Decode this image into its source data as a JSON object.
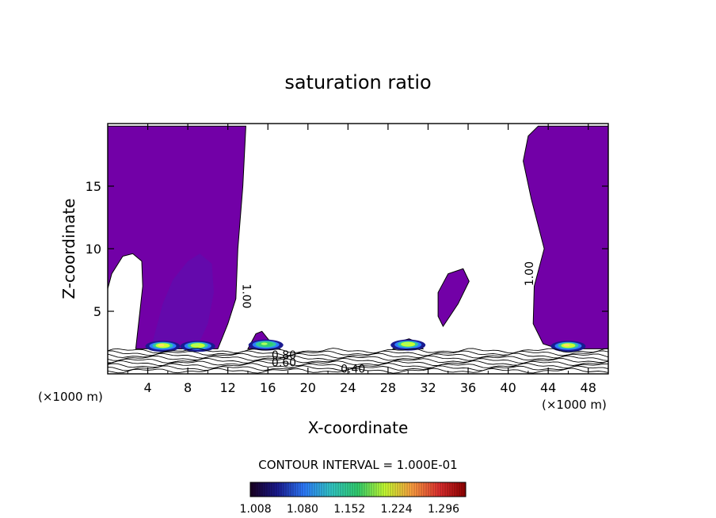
{
  "chart_data": {
    "type": "contour",
    "title": "saturation ratio",
    "xlabel": "X-coordinate",
    "ylabel": "Z-coordinate",
    "x_unit_left": "(×1000 m)",
    "x_unit_right": "(×1000 m)",
    "xlim": [
      0,
      50
    ],
    "ylim": [
      0,
      20
    ],
    "xticks": [
      4,
      8,
      12,
      16,
      20,
      24,
      28,
      32,
      36,
      40,
      44,
      48
    ],
    "yticks": [
      5,
      10,
      15
    ],
    "contour_labels": [
      {
        "text": "1.00",
        "x": 13.5,
        "z": 6.2,
        "rotate": 90
      },
      {
        "text": "1.00",
        "x": 42.5,
        "z": 8.0,
        "rotate": -90
      },
      {
        "text": "0.80",
        "x": 17.6,
        "z": 1.2,
        "rotate": 0
      },
      {
        "text": "0.60",
        "x": 17.6,
        "z": 0.6,
        "rotate": 0
      },
      {
        "text": "0.40",
        "x": 24.5,
        "z": 0.1,
        "rotate": 0
      }
    ],
    "regions": {
      "left_cloud": [
        [
          0,
          19.8
        ],
        [
          13.8,
          19.8
        ],
        [
          13.5,
          15
        ],
        [
          13.0,
          10
        ],
        [
          12.8,
          6
        ],
        [
          12.0,
          4
        ],
        [
          11.5,
          3
        ],
        [
          11.0,
          2
        ],
        [
          2.8,
          2
        ],
        [
          3.5,
          7
        ],
        [
          3.4,
          9
        ],
        [
          2.5,
          9.6
        ],
        [
          1.5,
          9.4
        ],
        [
          0.4,
          8
        ],
        [
          0,
          6.8
        ]
      ],
      "right_cloud": [
        [
          43.0,
          19.8
        ],
        [
          50,
          19.8
        ],
        [
          50,
          2
        ],
        [
          45.0,
          2
        ],
        [
          43.5,
          2.4
        ],
        [
          42.5,
          4
        ],
        [
          42.6,
          7
        ],
        [
          43.6,
          10
        ],
        [
          42.3,
          14
        ],
        [
          41.5,
          17
        ],
        [
          42.0,
          19
        ]
      ],
      "mid_cloud": [
        [
          33.0,
          6.5
        ],
        [
          34.0,
          8.0
        ],
        [
          35.5,
          8.4
        ],
        [
          36.1,
          7.4
        ],
        [
          35.0,
          5.6
        ],
        [
          34.0,
          4.4
        ],
        [
          33.5,
          3.8
        ],
        [
          33.0,
          4.6
        ]
      ],
      "small_cloud_16": [
        [
          14.0,
          2.0
        ],
        [
          14.8,
          3.2
        ],
        [
          15.4,
          3.4
        ],
        [
          16.2,
          2.6
        ],
        [
          17.2,
          2.0
        ]
      ],
      "small_cloud_30": [
        [
          28.5,
          2.0
        ],
        [
          29.2,
          2.6
        ],
        [
          30.1,
          2.8
        ],
        [
          31.0,
          2.5
        ],
        [
          31.5,
          2.0
        ]
      ],
      "dark_core": [
        [
          4.5,
          2.6
        ],
        [
          5.5,
          5.6
        ],
        [
          6.5,
          7.5
        ],
        [
          8.0,
          9.0
        ],
        [
          9.2,
          9.6
        ],
        [
          10.4,
          8.8
        ],
        [
          10.6,
          6.5
        ],
        [
          10.0,
          4.0
        ],
        [
          9.2,
          2.6
        ]
      ]
    },
    "hot_spots": [
      {
        "x": 5.5,
        "z": 2.2,
        "level": 1.15
      },
      {
        "x": 9.0,
        "z": 2.2,
        "level": 1.12
      },
      {
        "x": 15.8,
        "z": 2.3,
        "level": 1.05
      },
      {
        "x": 30.0,
        "z": 2.3,
        "level": 1.1
      },
      {
        "x": 46.0,
        "z": 2.2,
        "level": 1.15
      }
    ],
    "contour_interval": "CONTOUR INTERVAL = 1.000E-01",
    "colorbar": {
      "ticks": [
        "1.008",
        "1.080",
        "1.152",
        "1.224",
        "1.296"
      ],
      "range": [
        1.0,
        1.33
      ],
      "colors": [
        "#1a0020",
        "#1a1a90",
        "#2e7cff",
        "#32c8c8",
        "#32d06e",
        "#c8ff32",
        "#ffa040",
        "#e03030",
        "#900000"
      ]
    },
    "colors": {
      "cloud": "#7200a7",
      "core": "#5a10b0",
      "frame": "#000000",
      "background": "#ffffff"
    }
  }
}
